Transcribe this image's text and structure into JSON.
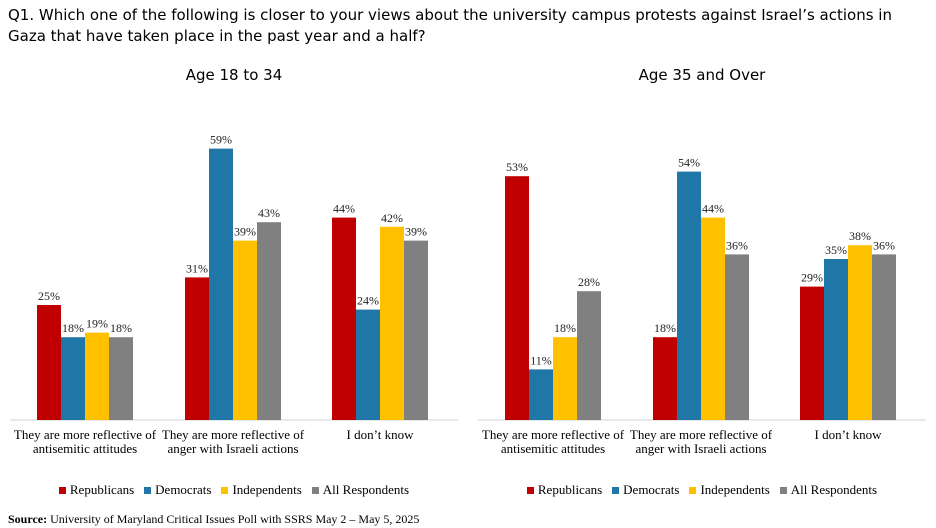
{
  "question": "Q1. Which one of the following is closer to your views about the university campus protests against Israel’s actions in Gaza that have taken place in the past year and a half?",
  "source_label": "Source:",
  "source_text": "University of Maryland Critical Issues Poll with SSRS May 2 – May 5, 2025",
  "colors": {
    "Republicans": "#C00000",
    "Democrats": "#1F77A8",
    "Independents": "#FFC000",
    "All Respondents": "#808080"
  },
  "chart_data": [
    {
      "type": "bar",
      "title": "Age 18 to 34",
      "categories": [
        "They are more reflective of antisemitic attitudes",
        "They are more reflective of anger with Israeli actions",
        "I don’t know"
      ],
      "series": [
        {
          "name": "Republicans",
          "values": [
            25,
            31,
            44
          ],
          "labels": [
            "25%",
            "31%",
            "44%"
          ]
        },
        {
          "name": "Democrats",
          "values": [
            18,
            59,
            24
          ],
          "labels": [
            "18%",
            "59%",
            "24%"
          ]
        },
        {
          "name": "Independents",
          "values": [
            19,
            39,
            42
          ],
          "labels": [
            "19%",
            "39%",
            "42%"
          ]
        },
        {
          "name": "All Respondents",
          "values": [
            18,
            43,
            39
          ],
          "labels": [
            "18%",
            "43%",
            "39%"
          ]
        }
      ],
      "ylim": [
        0,
        60
      ],
      "legend": "bottom"
    },
    {
      "type": "bar",
      "title": "Age 35 and Over",
      "categories": [
        "They are more reflective of antisemitic attitudes",
        "They are more reflective of anger with Israeli actions",
        "I don’t know"
      ],
      "series": [
        {
          "name": "Republicans",
          "values": [
            53,
            18,
            29
          ],
          "labels": [
            "53%",
            "18%",
            "29%"
          ]
        },
        {
          "name": "Democrats",
          "values": [
            11,
            54,
            35
          ],
          "labels": [
            "11%",
            "54%",
            "35%"
          ]
        },
        {
          "name": "Independents",
          "values": [
            18,
            44,
            38
          ],
          "labels": [
            "18%",
            "44%",
            "38%"
          ]
        },
        {
          "name": "All Respondents",
          "values": [
            28,
            36,
            36
          ],
          "labels": [
            "28%",
            "36%",
            "36%"
          ]
        }
      ],
      "ylim": [
        0,
        60
      ],
      "legend": "bottom"
    }
  ]
}
